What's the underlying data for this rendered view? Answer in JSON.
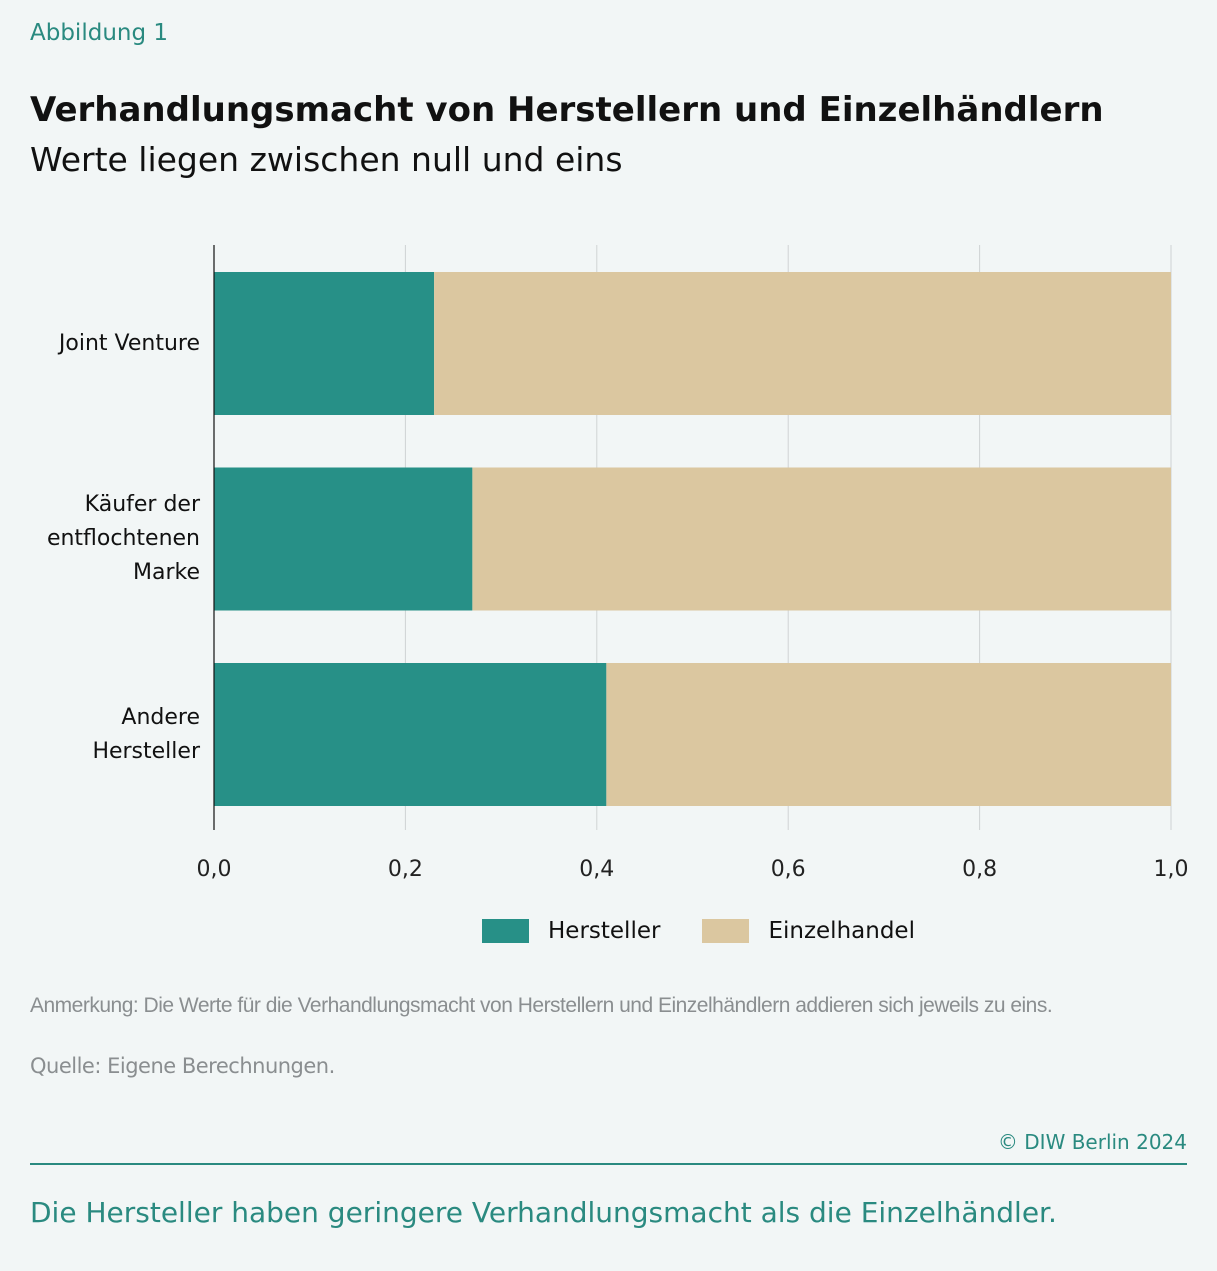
{
  "figure_label": "Abbildung 1",
  "chart_data": {
    "type": "stacked-bar-horizontal",
    "title": "Verhandlungsmacht von Herstellern und Einzelhändlern",
    "subtitle": "Werte liegen zwischen null und eins",
    "categories": [
      "Joint Venture",
      "Käufer der entflochtenen Marke",
      "Andere Hersteller"
    ],
    "series": [
      {
        "name": "Hersteller",
        "color": "#279087",
        "values": [
          0.23,
          0.27,
          0.41
        ]
      },
      {
        "name": "Einzelhandel",
        "color": "#dbc7a0",
        "values": [
          0.77,
          0.73,
          0.59
        ]
      }
    ],
    "xlim": [
      0,
      1
    ],
    "xticks": [
      {
        "value": 0,
        "label": "0,0"
      },
      {
        "value": 0.2,
        "label": "0,2"
      },
      {
        "value": 0.4,
        "label": "0,4"
      },
      {
        "value": 0.6,
        "label": "0,6"
      },
      {
        "value": 0.8,
        "label": "0,8"
      },
      {
        "value": 1,
        "label": "1,0"
      }
    ],
    "grid": true,
    "legend": "bottom"
  },
  "note": "Anmerkung: Die Werte für die Verhandlungsmacht von Herstellern und Einzelhändlern addieren sich jeweils zu eins.",
  "source": "Quelle: Eigene Berechnungen.",
  "copyright": "© DIW Berlin 2024",
  "caption": "Die Hersteller haben geringere Verhandlungsmacht als die Einzelhändler."
}
